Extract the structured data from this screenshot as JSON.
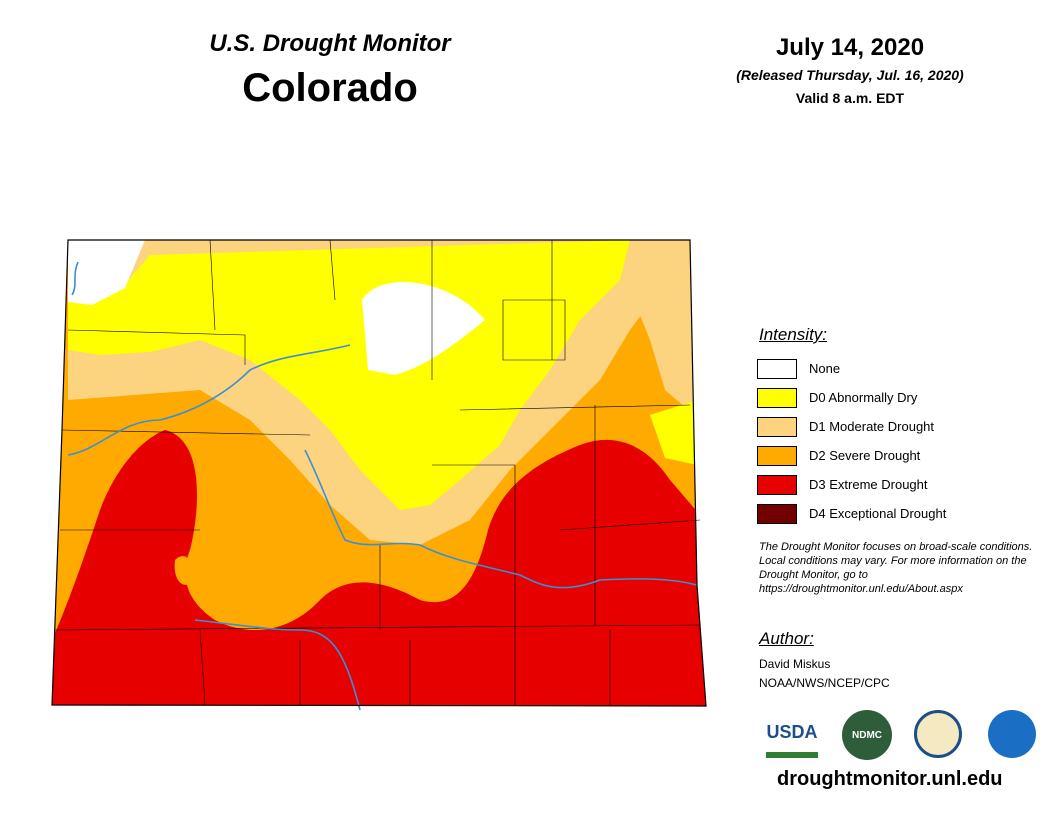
{
  "header": {
    "subtitle": "U.S. Drought Monitor",
    "title": "Colorado",
    "date": "July 14, 2020",
    "released": "(Released Thursday, Jul. 16, 2020)",
    "valid": "Valid 8 a.m. EDT"
  },
  "legend": {
    "title": "Intensity:",
    "items": [
      {
        "label": "None",
        "color": "#ffffff"
      },
      {
        "label": "D0 Abnormally Dry",
        "color": "#ffff00"
      },
      {
        "label": "D1 Moderate Drought",
        "color": "#fcd37f"
      },
      {
        "label": "D2 Severe Drought",
        "color": "#ffaa00"
      },
      {
        "label": "D3 Extreme Drought",
        "color": "#e60000"
      },
      {
        "label": "D4 Exceptional Drought",
        "color": "#730000"
      }
    ]
  },
  "note": "The Drought Monitor focuses on broad-scale conditions. Local conditions may vary. For more information on the Drought Monitor, go to https://droughtmonitor.unl.edu/About.aspx",
  "author": {
    "heading": "Author:",
    "name": "David Miskus",
    "org": "NOAA/NWS/NCEP/CPC"
  },
  "logos": [
    "USDA",
    "NDMC"
  ],
  "url": "droughtmonitor.unl.edu"
}
